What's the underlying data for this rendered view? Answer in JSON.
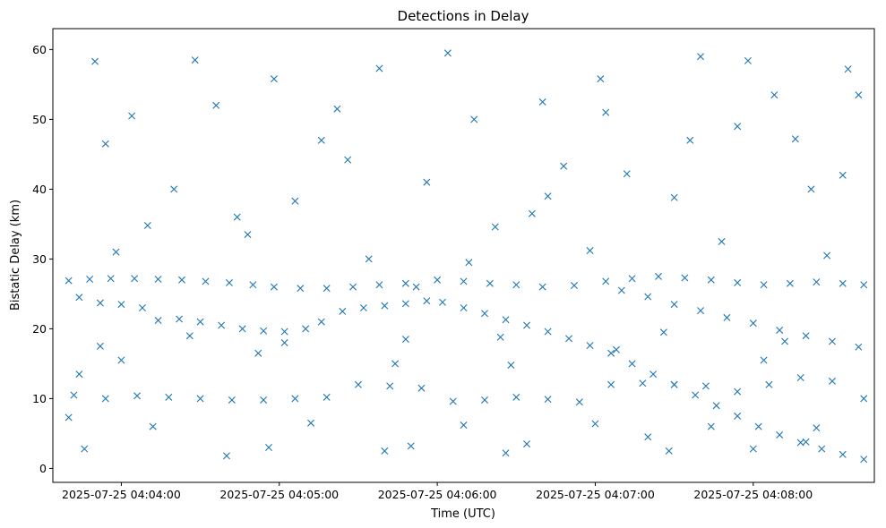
{
  "chart_data": {
    "type": "scatter",
    "title": "Detections in Delay",
    "xlabel": "Time (UTC)",
    "ylabel": "Bistatic Delay (km)",
    "marker": "x",
    "color": "#1f77b4",
    "grid": false,
    "legend": "none",
    "x_range": [
      "2025-07-25 04:03:34",
      "2025-07-25 04:08:46"
    ],
    "ylim": [
      -2,
      63
    ],
    "x_ticks": [
      "2025-07-25 04:04:00",
      "2025-07-25 04:05:00",
      "2025-07-25 04:06:00",
      "2025-07-25 04:07:00",
      "2025-07-25 04:08:00"
    ],
    "y_ticks": [
      0,
      10,
      20,
      30,
      40,
      50,
      60
    ],
    "series": [
      {
        "points": [
          [
            "2025-07-25 04:03:40",
            26.9
          ],
          [
            "2025-07-25 04:03:48",
            27.1
          ],
          [
            "2025-07-25 04:03:56",
            27.2
          ],
          [
            "2025-07-25 04:04:05",
            27.2
          ],
          [
            "2025-07-25 04:04:14",
            27.1
          ],
          [
            "2025-07-25 04:04:23",
            27.0
          ],
          [
            "2025-07-25 04:04:32",
            26.8
          ],
          [
            "2025-07-25 04:04:41",
            26.6
          ],
          [
            "2025-07-25 04:04:50",
            26.3
          ],
          [
            "2025-07-25 04:04:58",
            26.0
          ],
          [
            "2025-07-25 04:05:08",
            25.8
          ],
          [
            "2025-07-25 04:05:18",
            25.8
          ],
          [
            "2025-07-25 04:05:28",
            26.0
          ],
          [
            "2025-07-25 04:05:38",
            26.3
          ],
          [
            "2025-07-25 04:05:48",
            26.5
          ],
          [
            "2025-07-25 04:06:00",
            27.0
          ],
          [
            "2025-07-25 04:06:10",
            26.8
          ],
          [
            "2025-07-25 04:06:20",
            26.5
          ],
          [
            "2025-07-25 04:06:30",
            26.3
          ],
          [
            "2025-07-25 04:06:40",
            26.0
          ],
          [
            "2025-07-25 04:06:52",
            26.2
          ],
          [
            "2025-07-25 04:07:04",
            26.8
          ],
          [
            "2025-07-25 04:07:14",
            27.2
          ],
          [
            "2025-07-25 04:07:24",
            27.5
          ],
          [
            "2025-07-25 04:07:34",
            27.3
          ],
          [
            "2025-07-25 04:07:44",
            27.0
          ],
          [
            "2025-07-25 04:07:54",
            26.6
          ],
          [
            "2025-07-25 04:08:04",
            26.3
          ],
          [
            "2025-07-25 04:08:14",
            26.5
          ],
          [
            "2025-07-25 04:08:24",
            26.7
          ],
          [
            "2025-07-25 04:08:34",
            26.5
          ],
          [
            "2025-07-25 04:08:42",
            26.3
          ],
          [
            "2025-07-25 04:03:44",
            24.5
          ],
          [
            "2025-07-25 04:03:52",
            23.7
          ],
          [
            "2025-07-25 04:04:00",
            23.5
          ],
          [
            "2025-07-25 04:04:08",
            23.0
          ],
          [
            "2025-07-25 04:04:14",
            21.2
          ],
          [
            "2025-07-25 04:04:22",
            21.4
          ],
          [
            "2025-07-25 04:04:30",
            21.0
          ],
          [
            "2025-07-25 04:04:38",
            20.5
          ],
          [
            "2025-07-25 04:04:46",
            20.0
          ],
          [
            "2025-07-25 04:04:54",
            19.7
          ],
          [
            "2025-07-25 04:05:02",
            19.6
          ],
          [
            "2025-07-25 04:05:10",
            20.0
          ],
          [
            "2025-07-25 04:05:16",
            21.0
          ],
          [
            "2025-07-25 04:05:24",
            22.5
          ],
          [
            "2025-07-25 04:05:32",
            23.0
          ],
          [
            "2025-07-25 04:05:40",
            23.3
          ],
          [
            "2025-07-25 04:05:48",
            23.6
          ],
          [
            "2025-07-25 04:05:56",
            24.0
          ],
          [
            "2025-07-25 04:06:02",
            23.8
          ],
          [
            "2025-07-25 04:06:10",
            23.0
          ],
          [
            "2025-07-25 04:06:18",
            22.2
          ],
          [
            "2025-07-25 04:06:26",
            21.3
          ],
          [
            "2025-07-25 04:06:34",
            20.5
          ],
          [
            "2025-07-25 04:06:42",
            19.6
          ],
          [
            "2025-07-25 04:06:50",
            18.6
          ],
          [
            "2025-07-25 04:06:58",
            17.6
          ],
          [
            "2025-07-25 04:07:06",
            16.5
          ],
          [
            "2025-07-25 04:07:14",
            15.0
          ],
          [
            "2025-07-25 04:07:22",
            13.5
          ],
          [
            "2025-07-25 04:07:30",
            12.0
          ],
          [
            "2025-07-25 04:07:38",
            10.5
          ],
          [
            "2025-07-25 04:07:46",
            9.0
          ],
          [
            "2025-07-25 04:07:54",
            7.5
          ],
          [
            "2025-07-25 04:08:02",
            6.0
          ],
          [
            "2025-07-25 04:08:10",
            4.8
          ],
          [
            "2025-07-25 04:08:18",
            3.7
          ],
          [
            "2025-07-25 04:08:26",
            2.8
          ],
          [
            "2025-07-25 04:08:34",
            2.0
          ],
          [
            "2025-07-25 04:08:42",
            1.3
          ],
          [
            "2025-07-25 04:07:10",
            25.5
          ],
          [
            "2025-07-25 04:07:20",
            24.6
          ],
          [
            "2025-07-25 04:07:30",
            23.5
          ],
          [
            "2025-07-25 04:07:40",
            22.6
          ],
          [
            "2025-07-25 04:07:50",
            21.6
          ],
          [
            "2025-07-25 04:08:00",
            20.8
          ],
          [
            "2025-07-25 04:08:10",
            19.8
          ],
          [
            "2025-07-25 04:08:20",
            19.0
          ],
          [
            "2025-07-25 04:08:30",
            18.2
          ],
          [
            "2025-07-25 04:08:40",
            17.4
          ],
          [
            "2025-07-25 04:03:42",
            10.5
          ],
          [
            "2025-07-25 04:03:54",
            10.0
          ],
          [
            "2025-07-25 04:04:06",
            10.4
          ],
          [
            "2025-07-25 04:04:18",
            10.2
          ],
          [
            "2025-07-25 04:04:30",
            10.0
          ],
          [
            "2025-07-25 04:04:42",
            9.8
          ],
          [
            "2025-07-25 04:04:54",
            9.8
          ],
          [
            "2025-07-25 04:05:06",
            10.0
          ],
          [
            "2025-07-25 04:05:18",
            10.2
          ],
          [
            "2025-07-25 04:05:30",
            12.0
          ],
          [
            "2025-07-25 04:05:42",
            11.8
          ],
          [
            "2025-07-25 04:05:54",
            11.5
          ],
          [
            "2025-07-25 04:06:06",
            9.6
          ],
          [
            "2025-07-25 04:06:18",
            9.8
          ],
          [
            "2025-07-25 04:06:30",
            10.2
          ],
          [
            "2025-07-25 04:06:42",
            9.9
          ],
          [
            "2025-07-25 04:06:54",
            9.5
          ],
          [
            "2025-07-25 04:07:06",
            12.0
          ],
          [
            "2025-07-25 04:07:18",
            12.2
          ],
          [
            "2025-07-25 04:07:30",
            12.0
          ],
          [
            "2025-07-25 04:07:42",
            11.8
          ],
          [
            "2025-07-25 04:07:54",
            11.0
          ],
          [
            "2025-07-25 04:08:06",
            12.0
          ],
          [
            "2025-07-25 04:08:18",
            13.0
          ],
          [
            "2025-07-25 04:08:30",
            12.5
          ],
          [
            "2025-07-25 04:08:42",
            10.0
          ],
          [
            "2025-07-25 04:04:10",
            34.8
          ],
          [
            "2025-07-25 04:05:52",
            26.0
          ],
          [
            "2025-07-25 04:06:22",
            34.6
          ],
          [
            "2025-07-25 04:04:28",
            58.5
          ],
          [
            "2025-07-25 04:05:16",
            47.0
          ],
          [
            "2025-07-25 04:05:56",
            41.0
          ],
          [
            "2025-07-25 04:06:48",
            43.3
          ],
          [
            "2025-07-25 04:07:36",
            47.0
          ],
          [
            "2025-07-25 04:08:16",
            47.2
          ],
          [
            "2025-07-25 04:03:50",
            58.3
          ],
          [
            "2025-07-25 04:04:58",
            55.8
          ],
          [
            "2025-07-25 04:06:04",
            59.5
          ],
          [
            "2025-07-25 04:07:02",
            55.8
          ],
          [
            "2025-07-25 04:07:58",
            58.4
          ],
          [
            "2025-07-25 04:08:36",
            57.2
          ],
          [
            "2025-07-25 04:03:46",
            2.8
          ],
          [
            "2025-07-25 04:04:40",
            1.8
          ],
          [
            "2025-07-25 04:05:40",
            2.5
          ],
          [
            "2025-07-25 04:06:26",
            2.2
          ],
          [
            "2025-07-25 04:07:20",
            4.5
          ],
          [
            "2025-07-25 04:08:00",
            2.8
          ],
          [
            "2025-07-25 04:04:20",
            40.0
          ],
          [
            "2025-07-25 04:05:06",
            38.3
          ],
          [
            "2025-07-25 04:06:36",
            36.5
          ],
          [
            "2025-07-25 04:07:12",
            42.2
          ],
          [
            "2025-07-25 04:08:22",
            40.0
          ],
          [
            "2025-07-25 04:03:58",
            31.0
          ],
          [
            "2025-07-25 04:04:48",
            33.5
          ],
          [
            "2025-07-25 04:05:34",
            30.0
          ],
          [
            "2025-07-25 04:06:12",
            29.5
          ],
          [
            "2025-07-25 04:06:58",
            31.2
          ],
          [
            "2025-07-25 04:07:48",
            32.5
          ],
          [
            "2025-07-25 04:08:28",
            30.5
          ],
          [
            "2025-07-25 04:04:00",
            15.5
          ],
          [
            "2025-07-25 04:04:52",
            16.5
          ],
          [
            "2025-07-25 04:05:44",
            15.0
          ],
          [
            "2025-07-25 04:06:28",
            14.8
          ],
          [
            "2025-07-25 04:07:08",
            17.0
          ],
          [
            "2025-07-25 04:08:04",
            15.5
          ],
          [
            "2025-07-25 04:03:54",
            46.5
          ],
          [
            "2025-07-25 04:04:36",
            52.0
          ],
          [
            "2025-07-25 04:05:22",
            51.5
          ],
          [
            "2025-07-25 04:06:14",
            50.0
          ],
          [
            "2025-07-25 04:07:04",
            51.0
          ],
          [
            "2025-07-25 04:07:54",
            49.0
          ],
          [
            "2025-07-25 04:08:40",
            53.5
          ],
          [
            "2025-07-25 04:04:12",
            6.0
          ],
          [
            "2025-07-25 04:05:12",
            6.5
          ],
          [
            "2025-07-25 04:06:10",
            6.2
          ],
          [
            "2025-07-25 04:07:00",
            6.4
          ],
          [
            "2025-07-25 04:07:44",
            6.0
          ],
          [
            "2025-07-25 04:08:24",
            5.8
          ],
          [
            "2025-07-25 04:04:44",
            36.0
          ],
          [
            "2025-07-25 04:05:26",
            44.2
          ],
          [
            "2025-07-25 04:06:42",
            39.0
          ],
          [
            "2025-07-25 04:07:30",
            38.8
          ],
          [
            "2025-07-25 04:08:34",
            42.0
          ],
          [
            "2025-07-25 04:03:40",
            7.3
          ],
          [
            "2025-07-25 04:03:44",
            13.5
          ],
          [
            "2025-07-25 04:03:52",
            17.5
          ],
          [
            "2025-07-25 04:04:26",
            19.0
          ],
          [
            "2025-07-25 04:05:02",
            18.0
          ],
          [
            "2025-07-25 04:05:48",
            18.5
          ],
          [
            "2025-07-25 04:06:24",
            18.8
          ],
          [
            "2025-07-25 04:07:26",
            19.5
          ],
          [
            "2025-07-25 04:08:12",
            18.2
          ],
          [
            "2025-07-25 04:04:04",
            50.5
          ],
          [
            "2025-07-25 04:05:38",
            57.3
          ],
          [
            "2025-07-25 04:06:40",
            52.5
          ],
          [
            "2025-07-25 04:07:40",
            59.0
          ],
          [
            "2025-07-25 04:08:08",
            53.5
          ],
          [
            "2025-07-25 04:04:56",
            3.0
          ],
          [
            "2025-07-25 04:05:50",
            3.2
          ],
          [
            "2025-07-25 04:06:34",
            3.5
          ],
          [
            "2025-07-25 04:07:28",
            2.5
          ],
          [
            "2025-07-25 04:08:20",
            3.8
          ]
        ]
      }
    ]
  }
}
